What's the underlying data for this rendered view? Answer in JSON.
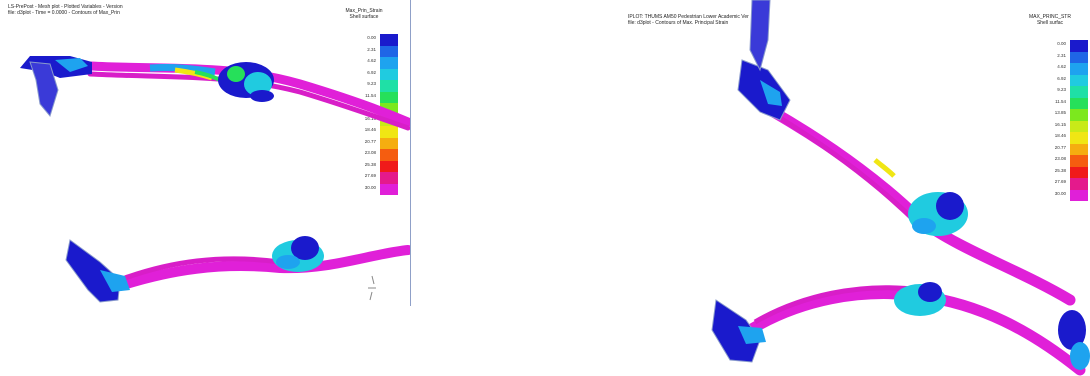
{
  "left": {
    "header_line1": "LS-PrePost - Mesh plot - Plotted Variables - Version",
    "header_line2": "file: d3plot - Time = 0.0000 - Contours of Max_Prin",
    "legend_title": [
      "Max_Prin_Strain",
      "Shell surface"
    ],
    "legend_values": [
      "0.00",
      "2.31",
      "4.62",
      "6.92",
      "9.23",
      "11.54",
      "13.85",
      "16.15",
      "18.46",
      "20.77",
      "23.08",
      "25.38",
      "27.69",
      "30.00"
    ]
  },
  "right": {
    "header_line1": "IPLOT: THUMS AM50 Pedestrian Lower Academic Ver",
    "header_line2": "file: d3plot - Contours of Max. Principal Strain",
    "legend_title": [
      "MAX_PRINC_STR",
      "Shell surfac"
    ],
    "legend_values": [
      "0.00",
      "2.31",
      "4.62",
      "6.92",
      "9.23",
      "11.54",
      "13.85",
      "16.15",
      "18.46",
      "20.77",
      "23.08",
      "25.38",
      "27.69",
      "30.00"
    ]
  },
  "legend_colors": [
    "#1a1acc",
    "#1f66e6",
    "#1ea3ef",
    "#20cbe0",
    "#1fe0a6",
    "#26e05a",
    "#7ce81e",
    "#c8ea18",
    "#f0e614",
    "#f5ad10",
    "#f55d10",
    "#f01a1a",
    "#e41a8c",
    "#e020d8"
  ],
  "bone_color": "#e020d8",
  "joint_color": "#1a1acc"
}
